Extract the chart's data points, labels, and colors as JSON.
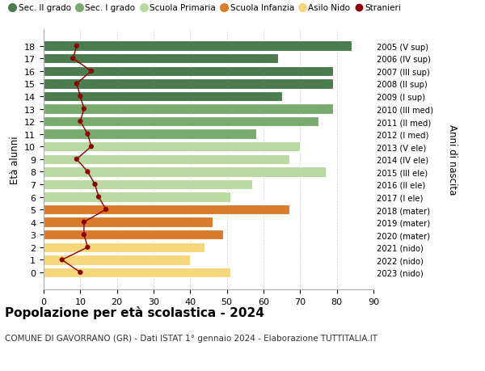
{
  "ages": [
    18,
    17,
    16,
    15,
    14,
    13,
    12,
    11,
    10,
    9,
    8,
    7,
    6,
    5,
    4,
    3,
    2,
    1,
    0
  ],
  "right_labels": [
    "2005 (V sup)",
    "2006 (IV sup)",
    "2007 (III sup)",
    "2008 (II sup)",
    "2009 (I sup)",
    "2010 (III med)",
    "2011 (II med)",
    "2012 (I med)",
    "2013 (V ele)",
    "2014 (IV ele)",
    "2015 (III ele)",
    "2016 (II ele)",
    "2017 (I ele)",
    "2018 (mater)",
    "2019 (mater)",
    "2020 (mater)",
    "2021 (nido)",
    "2022 (nido)",
    "2023 (nido)"
  ],
  "bar_values": [
    84,
    64,
    79,
    79,
    65,
    79,
    75,
    58,
    70,
    67,
    77,
    57,
    51,
    67,
    46,
    49,
    44,
    40,
    51
  ],
  "bar_colors": [
    "#4a7c4e",
    "#4a7c4e",
    "#4a7c4e",
    "#4a7c4e",
    "#4a7c4e",
    "#7aab6e",
    "#7aab6e",
    "#7aab6e",
    "#b8d9a0",
    "#b8d9a0",
    "#b8d9a0",
    "#b8d9a0",
    "#b8d9a0",
    "#d97b2a",
    "#d97b2a",
    "#d97b2a",
    "#f5d67a",
    "#f5d67a",
    "#f5d67a"
  ],
  "stranieri_values": [
    9,
    8,
    13,
    9,
    10,
    11,
    10,
    12,
    13,
    9,
    12,
    14,
    15,
    17,
    11,
    11,
    12,
    5,
    10
  ],
  "stranieri_color": "#8b0000",
  "ylabel": "Età alunni",
  "right_ylabel": "Anni di nascita",
  "title": "Popolazione per età scolastica - 2024",
  "subtitle": "COMUNE DI GAVORRANO (GR) - Dati ISTAT 1° gennaio 2024 - Elaborazione TUTTITALIA.IT",
  "xlim": [
    0,
    90
  ],
  "xticks": [
    0,
    10,
    20,
    30,
    40,
    50,
    60,
    70,
    80,
    90
  ],
  "legend_items": [
    {
      "label": "Sec. II grado",
      "color": "#4a7c4e"
    },
    {
      "label": "Sec. I grado",
      "color": "#7aab6e"
    },
    {
      "label": "Scuola Primaria",
      "color": "#b8d9a0"
    },
    {
      "label": "Scuola Infanzia",
      "color": "#d97b2a"
    },
    {
      "label": "Asilo Nido",
      "color": "#f5d67a"
    },
    {
      "label": "Stranieri",
      "color": "#8b0000"
    }
  ],
  "bg_color": "#ffffff",
  "grid_color": "#d0d0d0"
}
